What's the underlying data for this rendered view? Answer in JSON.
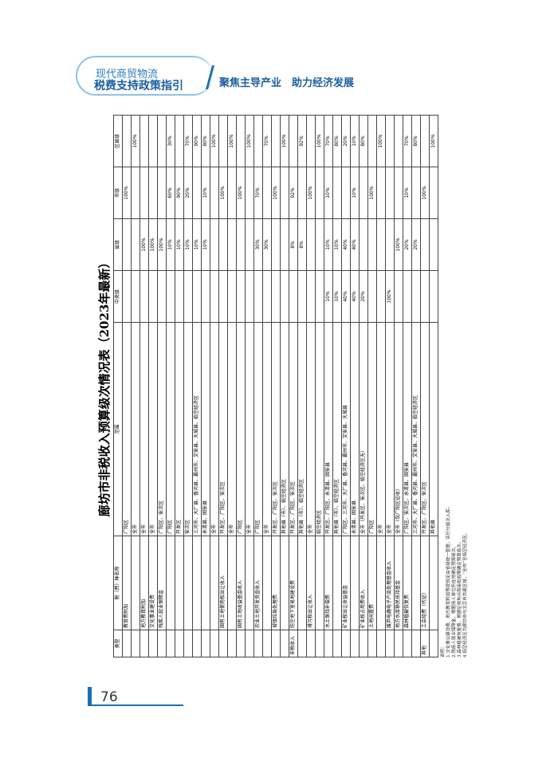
{
  "header": {
    "line1": "现代商贸物流",
    "line2": "税费支持政策指引",
    "slogan": "聚焦主导产业　助力经济发展"
  },
  "document": {
    "title": "廊坊市非税收入预算级次情况表（2023年最新）",
    "table": {
      "columns": [
        "类型",
        "税（费）种名称",
        "范围",
        "中央级",
        "省级",
        "市级",
        "区县级"
      ],
      "rows": [
        [
          null,
          "教育费附加",
          "广阳区",
          null,
          null,
          "100%",
          null
        ],
        [
          null,
          null,
          "全市",
          null,
          null,
          null,
          "100%"
        ],
        [
          null,
          "地方教育附加",
          "全市",
          null,
          "100%",
          null,
          null
        ],
        [
          null,
          "文化事业建设费",
          "全市",
          null,
          "100%",
          null,
          null
        ],
        [
          null,
          "残疾人就业保障金",
          "广阳区、安次区",
          null,
          "100%",
          null,
          null
        ],
        [
          null,
          null,
          "广阳区",
          null,
          "10%",
          "60%",
          "30%"
        ],
        [
          null,
          null,
          "开发区",
          null,
          "10%",
          "90%",
          null
        ],
        [
          null,
          null,
          "安次区",
          null,
          "10%",
          "20%",
          "70%"
        ],
        [
          null,
          null,
          "三河市、大厂县、香河县、霸州市、文安县、大城县、临空经济区",
          null,
          "10%",
          null,
          "90%"
        ],
        [
          null,
          null,
          "永清县、固安县",
          null,
          "10%",
          "10%",
          "80%"
        ],
        [
          null,
          null,
          "全市",
          null,
          null,
          null,
          "100%"
        ],
        [
          null,
          "国有土地使用权出让收入",
          "开发区、广阳区、安次区",
          null,
          null,
          "100%",
          null
        ],
        [
          null,
          null,
          "全市",
          null,
          null,
          null,
          "100%"
        ],
        [
          null,
          "国有土地收益基金收入",
          "广阳区",
          null,
          null,
          "100%",
          null
        ],
        [
          null,
          null,
          "全市",
          null,
          null,
          null,
          "100%"
        ],
        [
          null,
          "农业土地开发资金收入",
          "广阳区",
          null,
          "30%",
          "70%",
          null
        ],
        [
          null,
          null,
          "全市",
          null,
          "30%",
          null,
          "70%"
        ],
        [
          null,
          "城镇垃圾处理费",
          "开发区、广阳区、安次区",
          null,
          null,
          "100%",
          null
        ],
        [
          null,
          null,
          "其他县（市）、临空经济区",
          null,
          null,
          null,
          "100%"
        ],
        [
          "非税收入",
          "防空地下室易地建设费",
          "开发区、广阳区、安次区",
          null,
          "8%",
          "92%",
          null
        ],
        [
          null,
          null,
          "其他县（市）、临空经济区",
          null,
          "8%",
          null,
          "92%"
        ],
        [
          null,
          "排污权出让收入",
          "全市",
          null,
          null,
          "100%",
          null
        ],
        [
          null,
          null,
          "临空经济区",
          null,
          null,
          null,
          "100%"
        ],
        [
          null,
          "水土保持补偿费",
          "开发区、广阳区、永清县、固安县",
          "10%",
          "10%",
          "10%",
          "70%"
        ],
        [
          null,
          null,
          "其他县（市）、临空经济区",
          "10%",
          "10%",
          null,
          "80%"
        ],
        [
          null,
          "矿业权出让收益基金",
          "广阳区、三河市、大厂县、香河县、霸州市、文安县、大城县",
          "40%",
          "40%",
          null,
          "20%"
        ],
        [
          null,
          null,
          "永清县、固安县",
          "40%",
          "40%",
          "10%",
          "10%"
        ],
        [
          null,
          "矿业权占用费收入",
          "全市（开发区、安次区、临空经济区无）",
          "20%",
          null,
          null,
          "80%"
        ],
        [
          null,
          "土地闲置费",
          "广阳区",
          null,
          null,
          "100%",
          null
        ],
        [
          null,
          null,
          "全市",
          null,
          null,
          null,
          "100%"
        ],
        [
          null,
          "废弃电器电子产品处理基金收入",
          "全市",
          "100%",
          null,
          null,
          null
        ],
        [
          null,
          "地方水库移民扶持基金",
          "全市（仅广阳区征收）",
          null,
          "100%",
          null,
          null
        ],
        [
          null,
          "森林植被恢复费",
          "广阳区、安次区、永清县、固安县",
          null,
          "20%",
          "10%",
          "70%"
        ],
        [
          null,
          null,
          "三河市、大厂县、香河县、霸州市、文安县、大城县、临空经济区",
          null,
          "20%",
          null,
          "80%"
        ],
        [
          "其他",
          "工会经费（代征）",
          "开发区、广阳区、安次区",
          null,
          null,
          "100%",
          null
        ],
        [
          null,
          null,
          "其他县",
          null,
          null,
          null,
          "100%"
        ]
      ]
    },
    "notes": [
      "说明：",
      "1.文化事业建设费、地方教育附加等按规定由省级统一管理，实行分级次入库。",
      "2.残疾人就业保障金，根据用人单位所在地确定预算级次。",
      "3.森林植被恢复费，根据征收地点和审批权限确定预算级次。",
      "4.临空经济区为廊坊市与北京市共建区域，“全市”含临空经济区。"
    ]
  },
  "footer": {
    "page": "76"
  }
}
